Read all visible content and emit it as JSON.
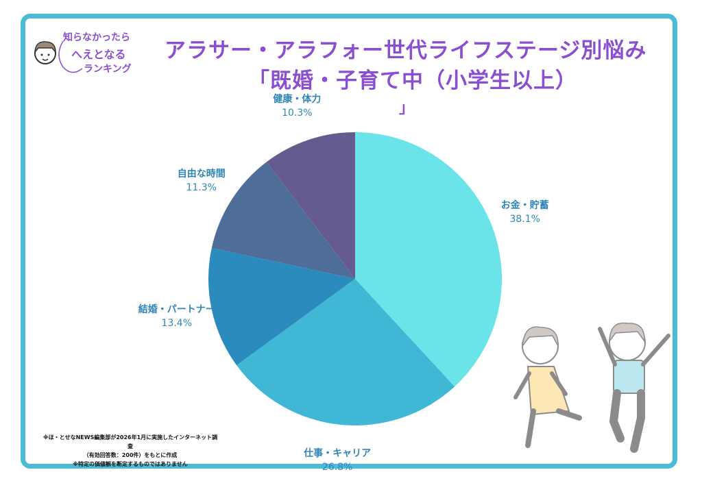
{
  "logo": {
    "line1": "知らなかったら",
    "line2": "へえとなる",
    "line3": "ランキング"
  },
  "title": {
    "line1": "アラサー・アラフォー世代ライフステージ別悩み",
    "line2": "「既婚・子育て中（小学生以上）",
    "line3": "」"
  },
  "notes": [
    "※ほ・とせなNEWS編集部が2026年1月に実施したインターネット調査",
    "（有効回答数：200件）をもとに作成",
    "※特定の価値観を断定するものではありません"
  ],
  "chart_data": {
    "type": "pie",
    "title": "アラサー・アラフォー世代ライフステージ別悩み「既婚・子育て中（小学生以上）」",
    "start": "top",
    "direction": "clockwise",
    "slices": [
      {
        "label": "お金・貯蓄",
        "value": 38.1,
        "display": "38.1%",
        "color": "#6be4e9"
      },
      {
        "label": "仕事・キャリア",
        "value": 26.8,
        "display": "26.8%",
        "color": "#41b7d6"
      },
      {
        "label": "結婚・パートナー",
        "value": 13.4,
        "display": "13.4%",
        "color": "#2b8bbd"
      },
      {
        "label": "自由な時間",
        "value": 11.3,
        "display": "11.3%",
        "color": "#4e6d99"
      },
      {
        "label": "健康・体力",
        "value": 10.3,
        "display": "10.3%",
        "color": "#665b8f"
      }
    ]
  }
}
